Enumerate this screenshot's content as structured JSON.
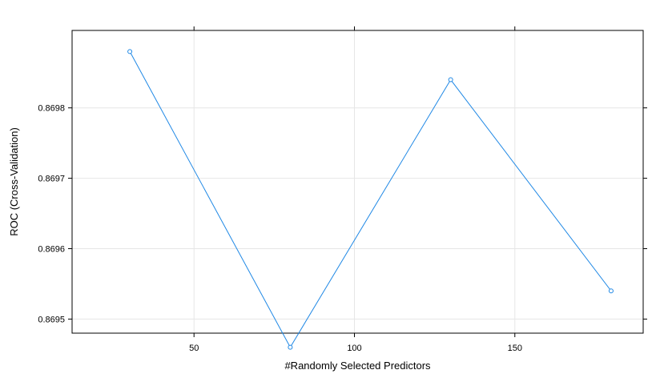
{
  "chart_data": {
    "type": "line",
    "title": "",
    "xlabel": "#Randomly Selected Predictors",
    "ylabel": "ROC (Cross-Validation)",
    "xlim": [
      12,
      190
    ],
    "ylim": [
      0.86948,
      0.86991
    ],
    "x_ticks": [
      50,
      100,
      150
    ],
    "y_ticks": [
      0.8695,
      0.8696,
      0.8697,
      0.8698
    ],
    "grid": true,
    "legend": "none",
    "series": [
      {
        "color": "#1F88E5",
        "x": [
          30,
          80,
          130,
          180
        ],
        "values": [
          0.86988,
          0.86946,
          0.86984,
          0.86954
        ]
      }
    ]
  },
  "colors": {
    "line": "#1F88E5",
    "grid": "#E6E6E6",
    "axis": "#000000"
  }
}
